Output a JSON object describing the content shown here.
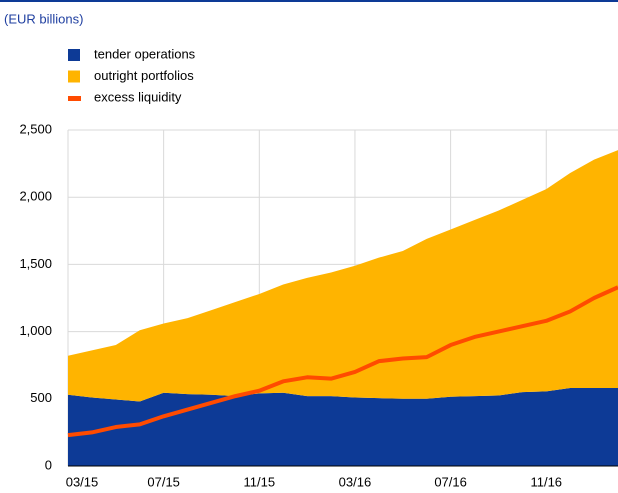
{
  "chart_data": {
    "type": "stacked-area-line",
    "subtitle": "(EUR billions)",
    "categories": [
      "03/15",
      null,
      null,
      null,
      "07/15",
      null,
      null,
      null,
      "11/15",
      null,
      null,
      null,
      "03/16",
      null,
      null,
      null,
      "07/16",
      null,
      null,
      null,
      "11/16",
      null,
      null,
      null
    ],
    "series": [
      {
        "name": "tender operations",
        "color": "#0d3a96",
        "kind": "area",
        "values": [
          530,
          510,
          495,
          480,
          545,
          535,
          530,
          520,
          540,
          545,
          520,
          520,
          510,
          505,
          500,
          500,
          515,
          520,
          525,
          550,
          555,
          580,
          580,
          580
        ]
      },
      {
        "name": "outright portfolios",
        "color": "#ffb400",
        "kind": "area",
        "values": [
          290,
          350,
          405,
          530,
          515,
          565,
          630,
          700,
          740,
          805,
          880,
          920,
          980,
          1045,
          1100,
          1190,
          1245,
          1310,
          1375,
          1430,
          1505,
          1600,
          1700,
          1770
        ]
      },
      {
        "name": "excess liquidity",
        "color": "#ff4b00",
        "kind": "line",
        "values": [
          230,
          250,
          290,
          310,
          370,
          420,
          470,
          520,
          560,
          630,
          660,
          650,
          700,
          780,
          800,
          810,
          900,
          960,
          1000,
          1040,
          1080,
          1150,
          1250,
          1330
        ]
      }
    ],
    "ylim": [
      0,
      2500
    ],
    "yticks": [
      0,
      500,
      {
        "value": 1000,
        "label": "1,000"
      },
      {
        "value": 1500,
        "label": "1,500"
      },
      {
        "value": 2000,
        "label": "2,000"
      },
      {
        "value": 2500,
        "label": "2,500"
      }
    ],
    "grid": true
  }
}
